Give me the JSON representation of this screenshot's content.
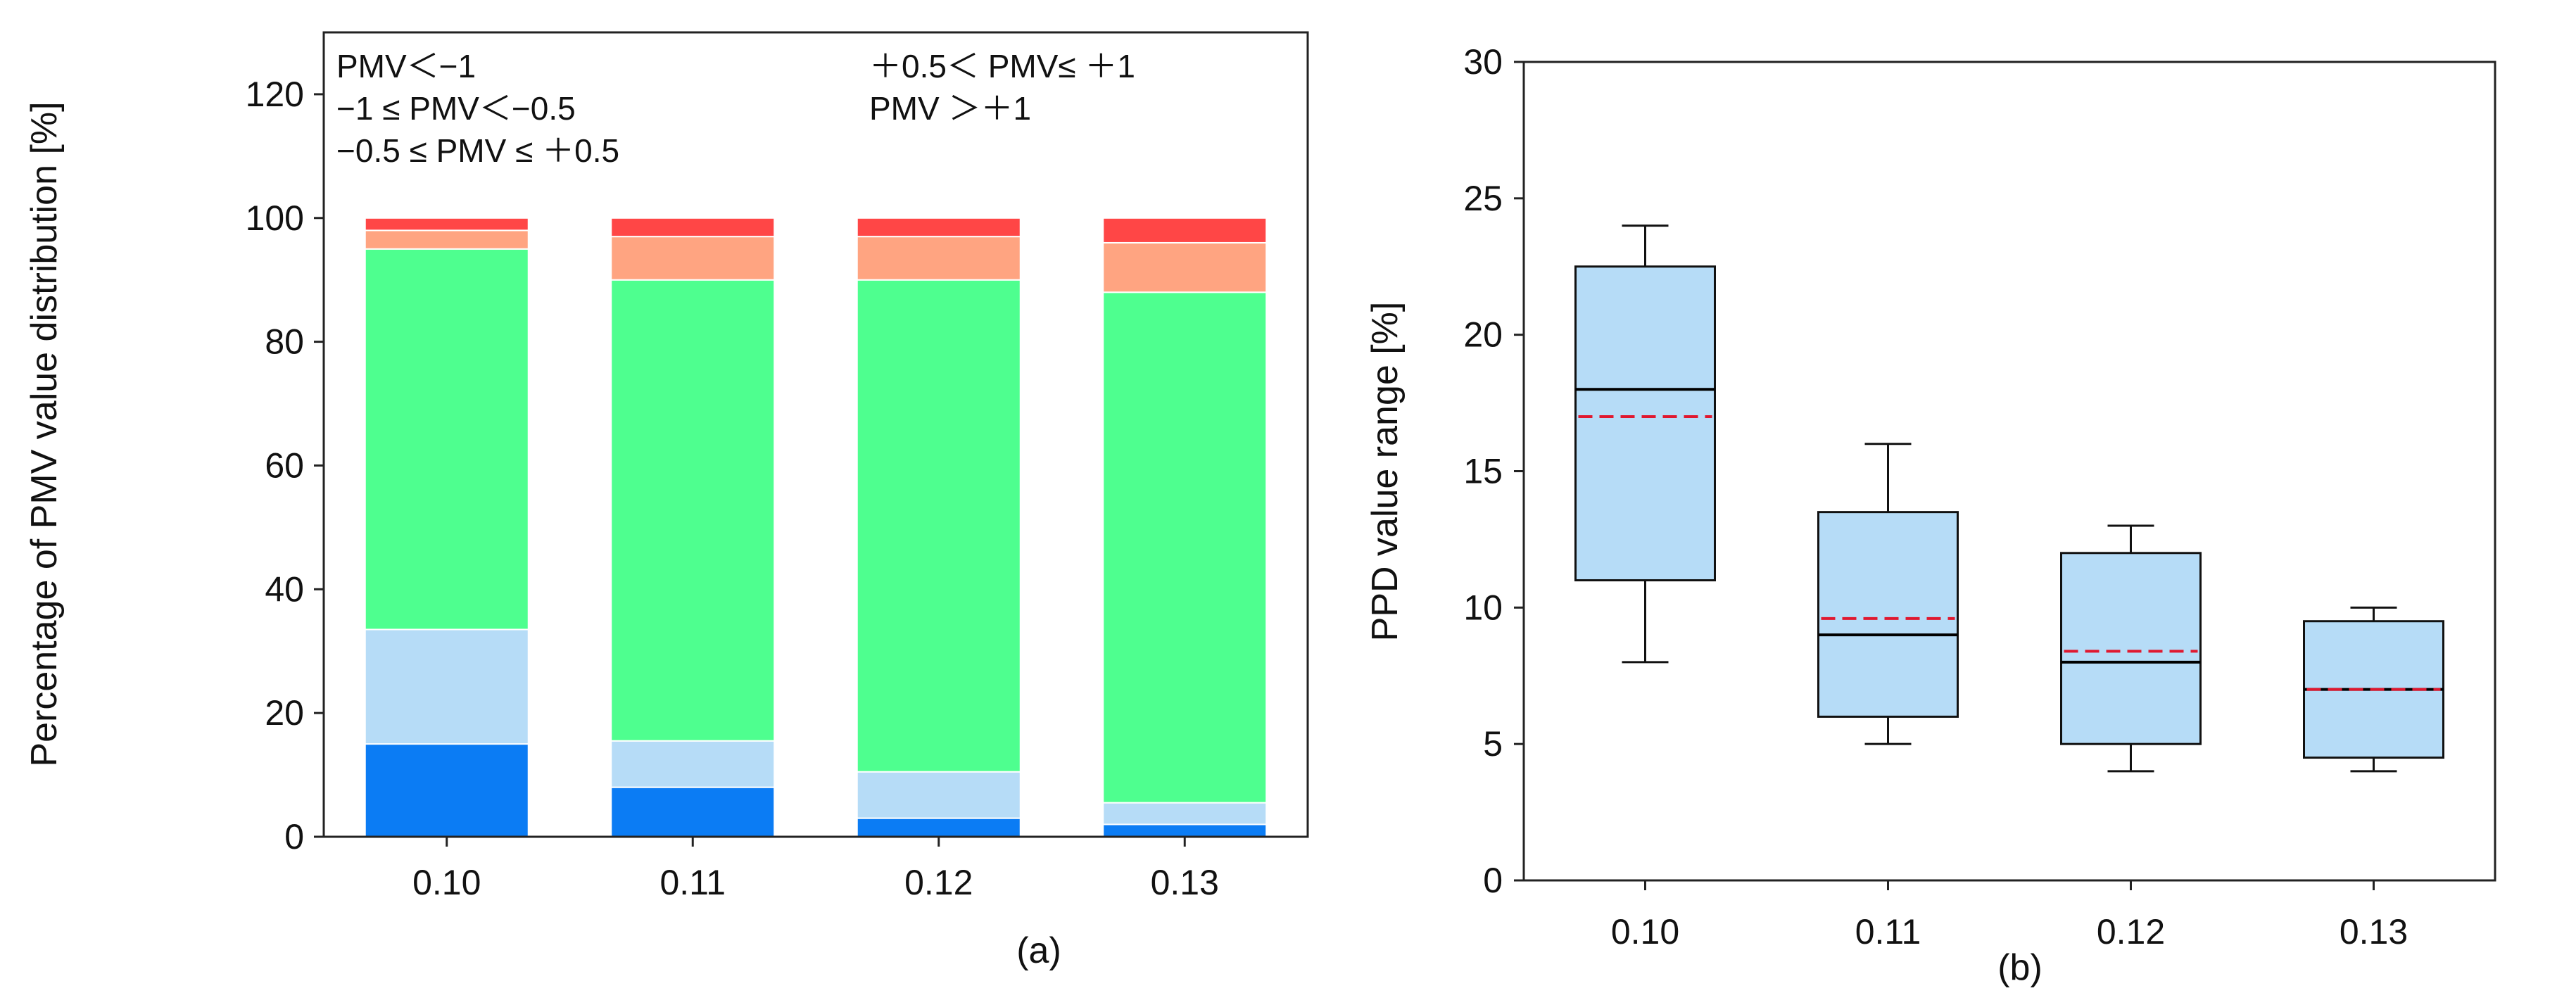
{
  "chart_data": [
    {
      "type": "bar",
      "stacked": true,
      "panel_label": "(a)",
      "title": "",
      "xlabel": "",
      "ylabel": "Percentage of PMV value distribution [%]",
      "ylim": [
        0,
        130
      ],
      "yticks": [
        0,
        20,
        40,
        60,
        80,
        100,
        120
      ],
      "categories": [
        "0.10",
        "0.11",
        "0.12",
        "0.13"
      ],
      "series": [
        {
          "name": "PMV＜−1",
          "color": "#0b7cf4",
          "values": [
            15,
            8,
            3,
            2
          ]
        },
        {
          "name": "−1 ≤ PMV＜−0.5",
          "color": "#b6dcf7",
          "values": [
            18.5,
            7.5,
            7.5,
            3.5
          ]
        },
        {
          "name": "−0.5 ≤ PMV ≤ ＋0.5",
          "color": "#4eff8f",
          "values": [
            61.5,
            74.5,
            79.5,
            82.5
          ]
        },
        {
          "name": "＋0.5＜ PMV≤ ＋1",
          "color": "#ffa481",
          "values": [
            3,
            7,
            7,
            8
          ]
        },
        {
          "name": "PMV ＞＋1",
          "color": "#ff4646",
          "values": [
            2,
            3,
            3,
            4
          ]
        }
      ],
      "legend_position": "top-left, inside plot, two columns"
    },
    {
      "type": "box",
      "panel_label": "(b)",
      "title": "",
      "xlabel": "",
      "ylabel": "PPD value range [%]",
      "ylim": [
        0,
        30
      ],
      "yticks": [
        0,
        5,
        10,
        15,
        20,
        25,
        30
      ],
      "categories": [
        "0.10",
        "0.11",
        "0.12",
        "0.13"
      ],
      "box_color": "#b6dcf7",
      "median_color": "#000000",
      "mean_color": "#e0182f",
      "boxes": [
        {
          "whisker_low": 8,
          "q1": 11,
          "median": 18,
          "mean": 17,
          "q3": 22.5,
          "whisker_high": 24
        },
        {
          "whisker_low": 5,
          "q1": 6,
          "median": 9,
          "mean": 9.6,
          "q3": 13.5,
          "whisker_high": 16
        },
        {
          "whisker_low": 4,
          "q1": 5,
          "median": 8,
          "mean": 8.4,
          "q3": 12,
          "whisker_high": 13
        },
        {
          "whisker_low": 4,
          "q1": 4.5,
          "median": 7,
          "mean": 7,
          "q3": 9.5,
          "whisker_high": 10
        }
      ]
    }
  ]
}
